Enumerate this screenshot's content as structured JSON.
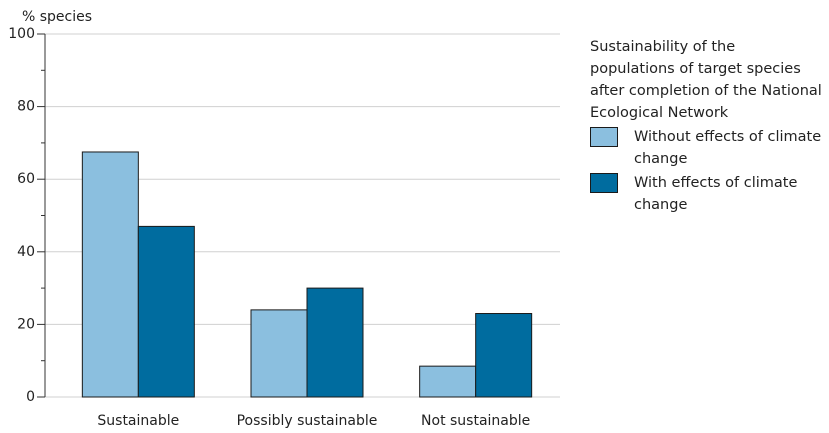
{
  "chart_data": {
    "type": "bar",
    "y_label": "% species",
    "categories": [
      "Sustainable",
      "Possibly sustainable",
      "Not sustainable"
    ],
    "series": [
      {
        "name": "Without effects of climate change",
        "color": "#8bbfdf",
        "values": [
          67.5,
          24,
          8.5
        ]
      },
      {
        "name": "With effects of climate change",
        "color": "#006c9f",
        "values": [
          47,
          30,
          23
        ]
      }
    ],
    "legend_title": "Sustainability of the populations of target species after completion of the National Ecological Network",
    "legend_position": "right",
    "ylim": [
      0,
      100
    ],
    "yticks": [
      0,
      20,
      40,
      60,
      80,
      100
    ],
    "minor_yticks": [
      10,
      30,
      50,
      70,
      90
    ],
    "grid": true
  }
}
